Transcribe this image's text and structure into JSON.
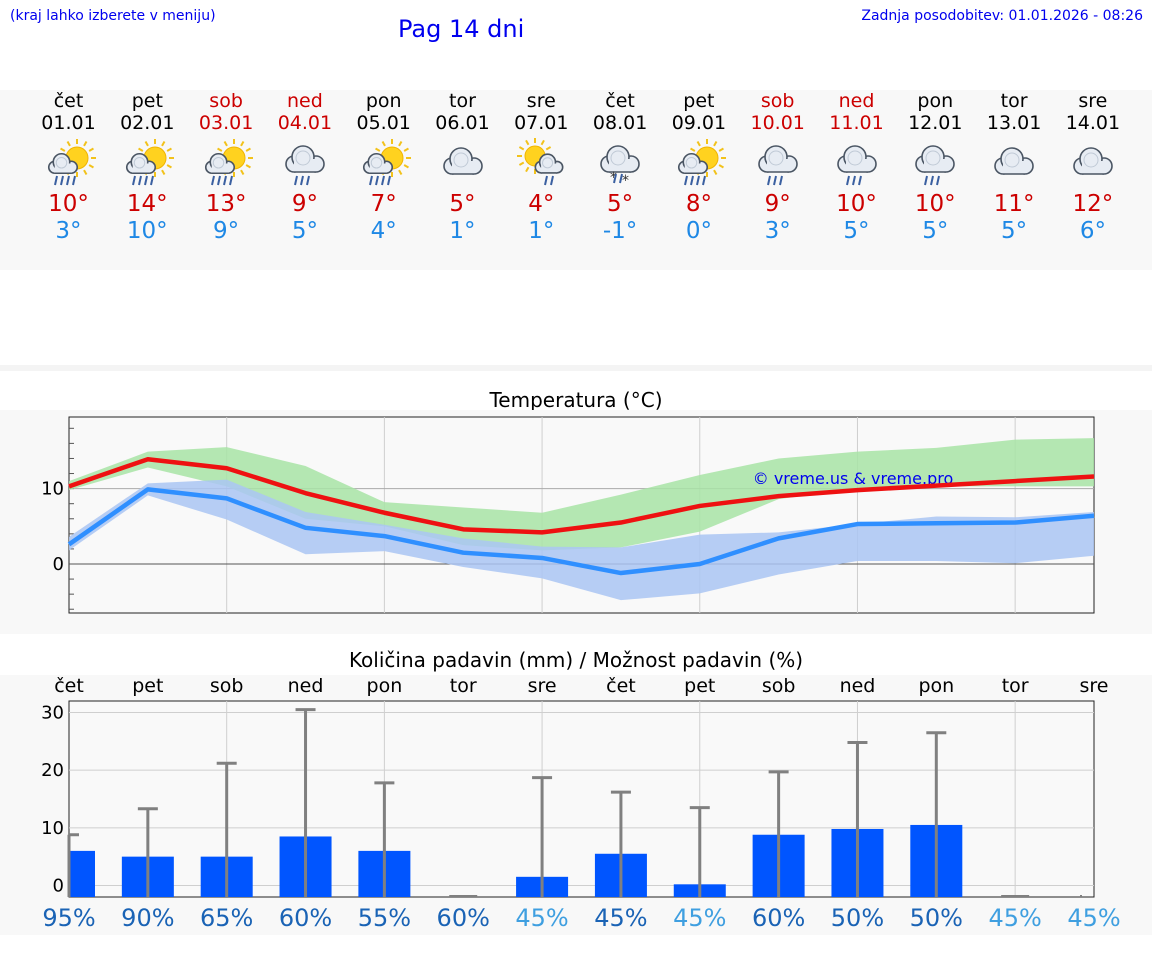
{
  "header": {
    "location_hint": "(kraj lahko izberete v meniju)",
    "title": "Pag 14 dni",
    "updated": "Zadnja posodobitev: 01.01.2026 - 08:26"
  },
  "days": [
    {
      "name": "čet",
      "date": "01.01",
      "max": "10°",
      "min": "3°",
      "weekend": false,
      "icon": "sun-rain-icon"
    },
    {
      "name": "pet",
      "date": "02.01",
      "max": "14°",
      "min": "10°",
      "weekend": false,
      "icon": "sun-rain-icon"
    },
    {
      "name": "sob",
      "date": "03.01",
      "max": "13°",
      "min": "9°",
      "weekend": true,
      "icon": "sun-rain-icon"
    },
    {
      "name": "ned",
      "date": "04.01",
      "max": "9°",
      "min": "5°",
      "weekend": true,
      "icon": "cloud-rain-icon"
    },
    {
      "name": "pon",
      "date": "05.01",
      "max": "7°",
      "min": "4°",
      "weekend": false,
      "icon": "sun-rain-icon"
    },
    {
      "name": "tor",
      "date": "06.01",
      "max": "5°",
      "min": "1°",
      "weekend": false,
      "icon": "cloud-icon"
    },
    {
      "name": "sre",
      "date": "07.01",
      "max": "4°",
      "min": "1°",
      "weekend": false,
      "icon": "sun-cloud-rain-icon"
    },
    {
      "name": "čet",
      "date": "08.01",
      "max": "5°",
      "min": "-1°",
      "weekend": false,
      "icon": "cloud-snow-icon"
    },
    {
      "name": "pet",
      "date": "09.01",
      "max": "8°",
      "min": "0°",
      "weekend": false,
      "icon": "sun-rain-icon"
    },
    {
      "name": "sob",
      "date": "10.01",
      "max": "9°",
      "min": "3°",
      "weekend": true,
      "icon": "cloud-rain-icon"
    },
    {
      "name": "ned",
      "date": "11.01",
      "max": "10°",
      "min": "5°",
      "weekend": true,
      "icon": "cloud-rain-icon"
    },
    {
      "name": "pon",
      "date": "12.01",
      "max": "10°",
      "min": "5°",
      "weekend": false,
      "icon": "cloud-rain-icon"
    },
    {
      "name": "tor",
      "date": "13.01",
      "max": "11°",
      "min": "5°",
      "weekend": false,
      "icon": "cloud-icon"
    },
    {
      "name": "sre",
      "date": "14.01",
      "max": "12°",
      "min": "6°",
      "weekend": false,
      "icon": "cloud-icon"
    }
  ],
  "colors": {
    "max_line": "#ee1111",
    "min_line": "#2f8fff",
    "max_band": "#a8e4a6",
    "min_band": "#aac6f3",
    "bar": "#0055ff",
    "err": "#808080",
    "pct_dark": "#1a63b5",
    "pct_light": "#3f9fe0"
  },
  "chart_data": [
    {
      "type": "line",
      "title": "Temperatura (°C)",
      "watermark": "© vreme.us & vreme.pro",
      "x": [
        "01.01",
        "02.01",
        "03.01",
        "04.01",
        "05.01",
        "06.01",
        "07.01",
        "08.01",
        "09.01",
        "10.01",
        "11.01",
        "12.01",
        "13.01",
        "14.01"
      ],
      "ylim": [
        -6.5,
        19.5
      ],
      "yticks": [
        0,
        10
      ],
      "series": [
        {
          "name": "max",
          "values": [
            10.3,
            13.9,
            12.7,
            9.4,
            6.8,
            4.6,
            4.2,
            5.5,
            7.7,
            9.0,
            9.8,
            10.4,
            11.0,
            11.6
          ]
        },
        {
          "name": "min",
          "values": [
            2.6,
            9.9,
            8.7,
            4.8,
            3.7,
            1.5,
            0.8,
            -1.2,
            0.0,
            3.4,
            5.3,
            5.4,
            5.5,
            6.4
          ]
        },
        {
          "name": "max_upper",
          "values": [
            11.0,
            14.9,
            15.5,
            13.0,
            8.2,
            7.5,
            6.8,
            9.2,
            11.8,
            14.0,
            14.9,
            15.4,
            16.5,
            16.7
          ]
        },
        {
          "name": "max_lower",
          "values": [
            9.8,
            12.8,
            10.3,
            6.0,
            5.0,
            2.5,
            1.8,
            2.2,
            4.3,
            8.6,
            10.0,
            10.3,
            10.3,
            10.3
          ]
        },
        {
          "name": "min_upper",
          "values": [
            3.6,
            10.7,
            11.2,
            6.9,
            5.2,
            3.4,
            2.3,
            2.2,
            3.9,
            4.2,
            5.3,
            6.3,
            6.2,
            6.9
          ]
        },
        {
          "name": "min_lower",
          "values": [
            1.8,
            9.1,
            5.9,
            1.3,
            1.7,
            -0.4,
            -1.9,
            -4.8,
            -3.9,
            -1.4,
            0.4,
            0.4,
            0.1,
            1.1
          ]
        }
      ]
    },
    {
      "type": "bar",
      "title": "Količina padavin (mm) / Možnost padavin (%)",
      "categories": [
        "čet",
        "pet",
        "sob",
        "ned",
        "pon",
        "tor",
        "sre",
        "čet",
        "pet",
        "sob",
        "ned",
        "pon",
        "tor",
        "sre"
      ],
      "values": [
        6.0,
        5.0,
        5.0,
        8.5,
        6.0,
        0.0,
        1.5,
        5.5,
        0.2,
        8.8,
        9.8,
        10.5,
        0.0,
        0.0
      ],
      "error_max": [
        8.8,
        13.3,
        21.2,
        30.5,
        17.8,
        0.0,
        18.7,
        16.2,
        13.5,
        19.7,
        24.8,
        26.5,
        0.0,
        0.0
      ],
      "probability": [
        "95%",
        "90%",
        "65%",
        "60%",
        "55%",
        "60%",
        "45%",
        "45%",
        "45%",
        "60%",
        "50%",
        "50%",
        "45%",
        "45%"
      ],
      "probability_light": [
        false,
        false,
        false,
        false,
        false,
        false,
        true,
        false,
        true,
        false,
        false,
        false,
        true,
        true
      ],
      "ylim": [
        -2,
        32
      ],
      "yticks": [
        0,
        10,
        20,
        30
      ]
    }
  ]
}
